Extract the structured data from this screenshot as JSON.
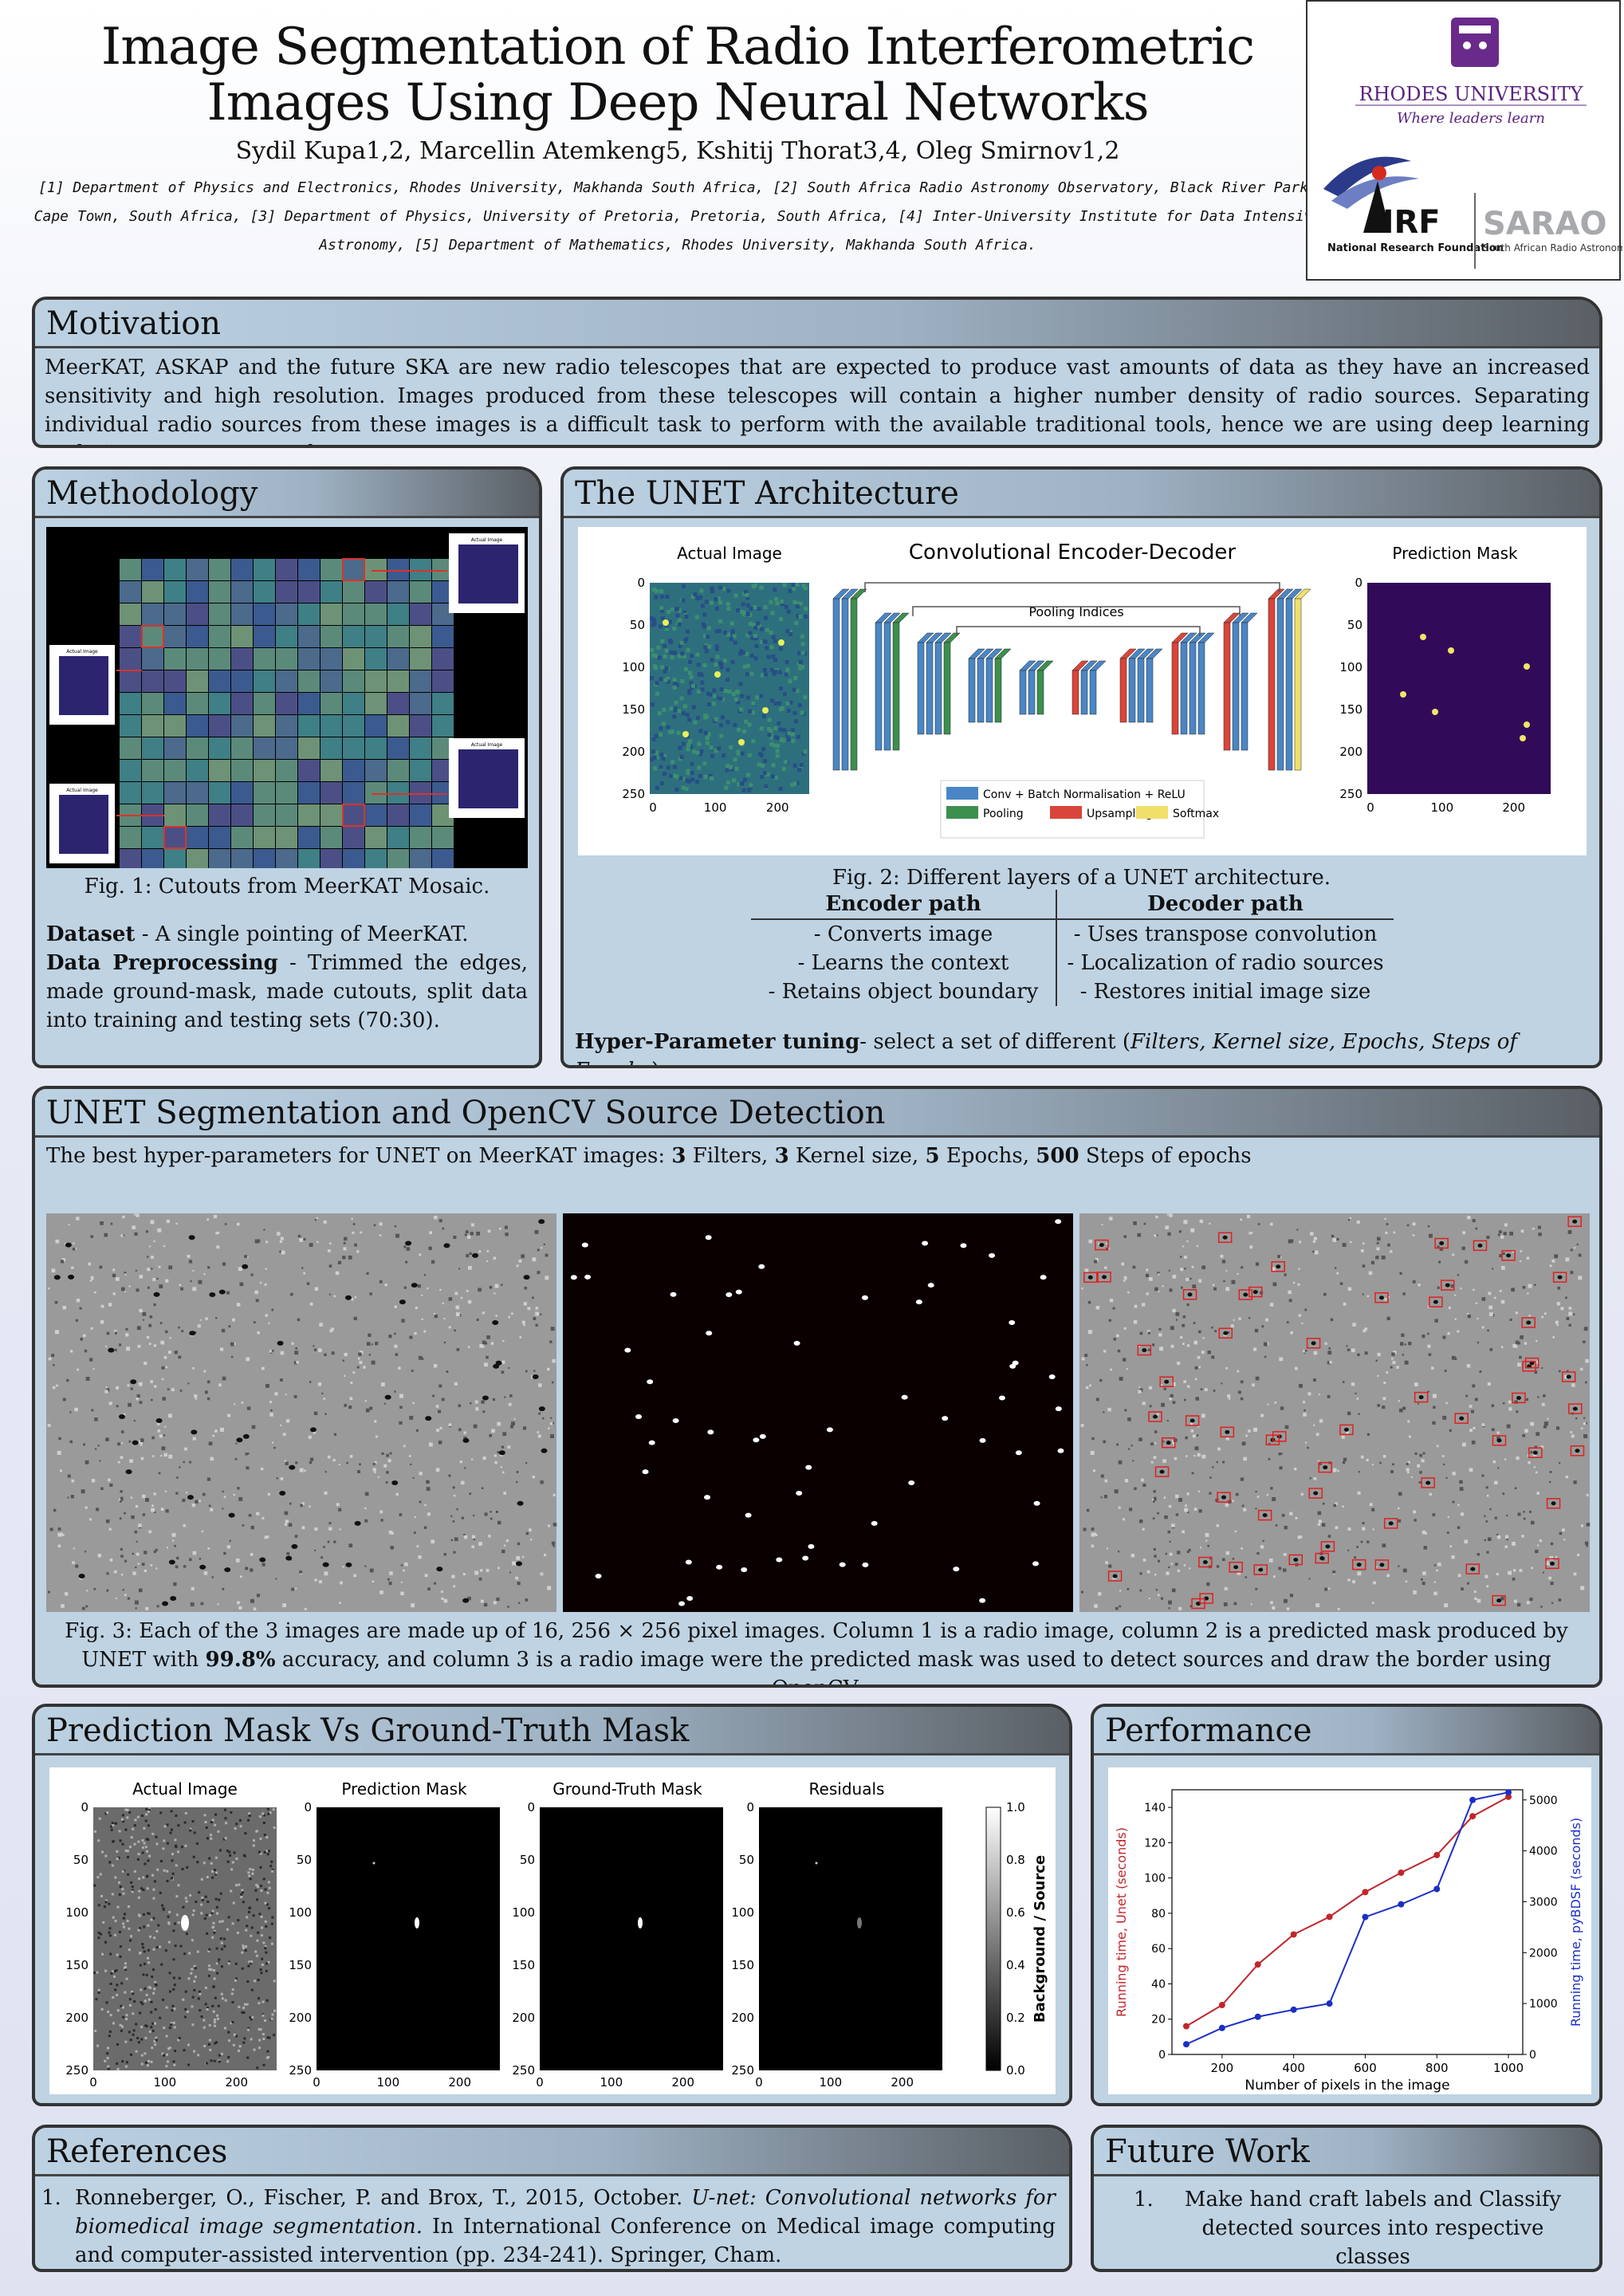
{
  "header": {
    "title_line1": "Image Segmentation of Radio Interferometric",
    "title_line2": "Images Using Deep Neural Networks",
    "authors": "Sydil Kupa1,2, Marcellin Atemkeng5, Kshitij Thorat3,4, Oleg Smirnov1,2",
    "affiliations": "[1] Department of Physics and Electronics, Rhodes University, Makhanda South Africa, [2] South Africa Radio Astronomy Observatory, Black River Park, Cape Town, South Africa, [3] Department of Physics, University of Pretoria, Pretoria, South Africa, [4] Inter-University Institute for Data Intensive Astronomy, [5] Department of Mathematics, Rhodes University, Makhanda South Africa."
  },
  "logos": {
    "rhodes_name": "RHODES UNIVERSITY",
    "rhodes_tagline": "Where leaders learn",
    "nrf_name": "NRF",
    "nrf_sub": "National Research Foundation",
    "sarao_name": "SARAO",
    "sarao_sub": "South African Radio Astronomy Observatory"
  },
  "motivation": {
    "heading": "Motivation",
    "text": "MeerKAT, ASKAP and the future SKA are new radio telescopes that are expected to produce vast amounts of data as they have an increased sensitivity and high resolution. Images produced from these telescopes will contain a higher number density of radio sources. Separating individual radio sources from these images is a difficult task to perform with the available traditional tools, hence we are using deep learning techniques to automate the process."
  },
  "methodology": {
    "heading": "Methodology",
    "fig_caption": "Fig. 1: Cutouts from MeerKAT Mosaic.",
    "dataset_label": "Dataset",
    "dataset_text": " - A single pointing of MeerKAT.",
    "prep_label": "Data Preprocessing",
    "prep_text": " - Trimmed the edges, made ground-mask, made cutouts, split data into training and testing sets (70:30).",
    "inset_label": "Actual Image"
  },
  "unet": {
    "heading": "The UNET Architecture",
    "actual_image_label": "Actual Image",
    "diagram_title": "Convolutional Encoder-Decoder",
    "pooling_indices": "Pooling Indices",
    "prediction_mask_label": "Prediction Mask",
    "legend": [
      "Conv + Batch Normalisation + ReLU",
      "Pooling",
      "Upsampling",
      "Softmax"
    ],
    "legend_colors": [
      "#4a86c5",
      "#3d8f4e",
      "#d9453b",
      "#f0e06a"
    ],
    "y_ticks": [
      "0",
      "50",
      "100",
      "150",
      "200",
      "250"
    ],
    "x_ticks": [
      "0",
      "100",
      "200"
    ],
    "fig_caption": "Fig. 2: Different layers of a UNET architecture.",
    "table_headers": [
      "Encoder path",
      "Decoder path"
    ],
    "table_rows": [
      [
        "- Converts image",
        "- Uses transpose convolution"
      ],
      [
        "- Learns the context",
        "- Localization of radio sources"
      ],
      [
        "- Retains object boundary",
        "- Restores initial image size"
      ]
    ],
    "tuning_label": "Hyper-Parameter tuning",
    "tuning_text": "- select a set of different (",
    "tuning_italic": "Filters, Kernel size, Epochs, Steps of Epochs",
    "tuning_end": ")."
  },
  "segmentation": {
    "heading": "UNET Segmentation and OpenCV Source Detection",
    "best_text_1": "The best hyper-parameters for UNET on MeerKAT images: ",
    "best_values": [
      "3",
      "3",
      "5",
      "500"
    ],
    "best_words": [
      " Filters, ",
      " Kernel size, ",
      " Epochs, ",
      " Steps of epochs"
    ],
    "caption_1": "Fig. 3: Each of the 3 images are made up of 16, 256 × 256 pixel images. Column 1 is a radio image, column 2 is a predicted mask produced by UNET with ",
    "caption_accuracy": "99.8%",
    "caption_2": " accuracy, and column 3 is a radio image were the predicted mask was used to detect sources and draw the border using OpenCV."
  },
  "prediction": {
    "heading": "Prediction Mask Vs Ground-Truth Mask",
    "panel_titles": [
      "Actual Image",
      "Prediction Mask",
      "Ground-Truth Mask",
      "Residuals"
    ],
    "y_ticks": [
      "0",
      "50",
      "100",
      "150",
      "200",
      "250"
    ],
    "x_ticks": [
      "0",
      "100",
      "200"
    ],
    "colorbar_ticks": [
      "1.0",
      "0.8",
      "0.6",
      "0.4",
      "0.2",
      "0.0"
    ],
    "colorbar_label": "Background / Source"
  },
  "performance": {
    "heading": "Performance"
  },
  "chart_data": {
    "type": "line",
    "xlabel": "Number of pixels in the image",
    "x": [
      100,
      200,
      300,
      400,
      500,
      600,
      700,
      800,
      900,
      1000
    ],
    "xlim": [
      60,
      1040
    ],
    "xticks": [
      200,
      400,
      600,
      800,
      1000
    ],
    "series": [
      {
        "name": "Running time, Unet (seconds)",
        "axis": "left",
        "color": "#c0262b",
        "values": [
          16,
          28,
          51,
          68,
          78,
          92,
          103,
          113,
          135,
          146
        ]
      },
      {
        "name": "Running time, pyBDSF (seconds)",
        "axis": "right",
        "color": "#1c2fc4",
        "values": [
          200,
          520,
          740,
          880,
          1000,
          2700,
          2950,
          3250,
          5000,
          5150
        ]
      }
    ],
    "ylim_left": [
      0,
      150
    ],
    "yticks_left": [
      0,
      20,
      40,
      60,
      80,
      100,
      120,
      140
    ],
    "ylabel_left": "Running time, Unet (seconds)",
    "ylim_right": [
      0,
      5200
    ],
    "yticks_right": [
      0,
      1000,
      2000,
      3000,
      4000,
      5000
    ],
    "ylabel_right": "Running time, pyBDSF (seconds)"
  },
  "references": {
    "heading": "References",
    "num": "1.",
    "authors": "Ronneberger, O., Fischer, P. and Brox, T., 2015, October. ",
    "title": "U-net: Convolutional networks for biomedical image segmentation.",
    "rest": " In International Conference on Medical image computing and computer-assisted intervention (pp. 234-241). Springer, Cham."
  },
  "future": {
    "heading": "Future Work",
    "num": "1.",
    "item": "Make hand craft labels and Classify detected sources into respective classes"
  }
}
